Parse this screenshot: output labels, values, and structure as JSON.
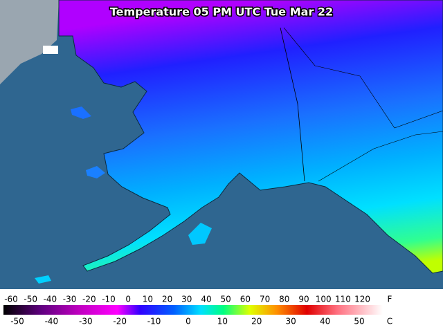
{
  "title": "Temperature 05 PM UTC Tue Mar 22",
  "legend": {
    "fahrenheit": {
      "unit": "F",
      "ticks": [
        -60,
        -50,
        -40,
        -30,
        -20,
        -10,
        0,
        10,
        20,
        30,
        40,
        50,
        60,
        70,
        80,
        90,
        100,
        110,
        120
      ]
    },
    "celsius": {
      "unit": "C",
      "ticks": [
        -50,
        -40,
        -30,
        -20,
        -10,
        0,
        10,
        20,
        30,
        40,
        50
      ]
    }
  }
}
